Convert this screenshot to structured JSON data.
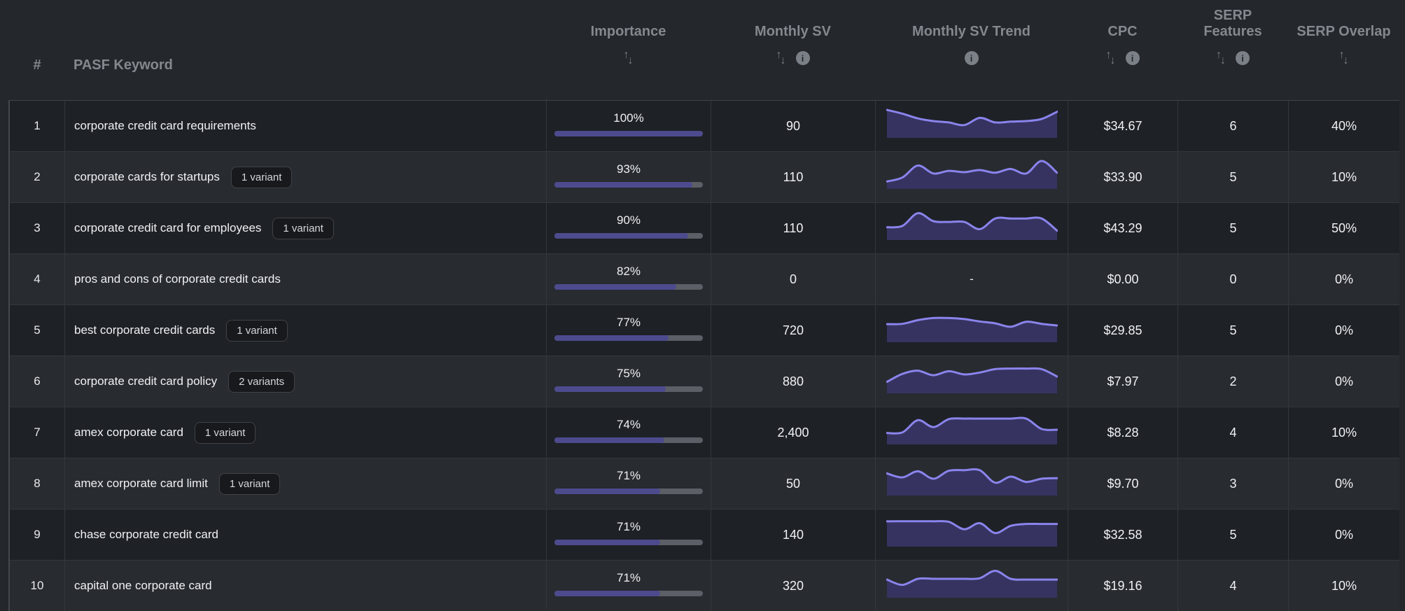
{
  "header": {
    "rank": "#",
    "keyword_col": "PASF Keyword",
    "importance": "Importance",
    "monthly_sv": "Monthly SV",
    "monthly_sv_trend": "Monthly SV Trend",
    "cpc": "CPC",
    "serp_features": "SERP Features",
    "serp_overlap": "SERP Overlap"
  },
  "icons": {
    "sort_up": "↑",
    "sort_down": "↓",
    "info": "i"
  },
  "trend_placeholder": "-",
  "colors": {
    "accent_bar": "#4d4b8e",
    "bar_track": "#5c5f66",
    "spark_line": "#8a84ec",
    "spark_fill": "#363360",
    "row_odd": "#1e2126",
    "row_even": "#282b30"
  },
  "rows": [
    {
      "num": "1",
      "keyword": "corporate credit card requirements",
      "badge": "",
      "importance": "100%",
      "importance_value": 100,
      "monthly_sv": "90",
      "cpc": "$34.67",
      "serp_features": "6",
      "serp_overlap": "40%",
      "trend": [
        0.08,
        0.22,
        0.4,
        0.5,
        0.55,
        0.65,
        0.38,
        0.55,
        0.52,
        0.5,
        0.42,
        0.15
      ]
    },
    {
      "num": "2",
      "keyword": "corporate cards for startups",
      "badge": "1 variant",
      "importance": "93%",
      "importance_value": 93,
      "monthly_sv": "110",
      "cpc": "$33.90",
      "serp_features": "5",
      "serp_overlap": "10%",
      "trend": [
        0.85,
        0.7,
        0.25,
        0.55,
        0.45,
        0.5,
        0.42,
        0.52,
        0.38,
        0.55,
        0.08,
        0.52
      ]
    },
    {
      "num": "3",
      "keyword": "corporate credit card for employees",
      "badge": "1 variant",
      "importance": "90%",
      "importance_value": 90,
      "monthly_sv": "110",
      "cpc": "$43.29",
      "serp_features": "5",
      "serp_overlap": "50%",
      "trend": [
        0.65,
        0.6,
        0.12,
        0.42,
        0.45,
        0.45,
        0.72,
        0.32,
        0.32,
        0.32,
        0.32,
        0.78
      ]
    },
    {
      "num": "4",
      "keyword": "pros and cons of corporate credit cards",
      "badge": "",
      "importance": "82%",
      "importance_value": 82,
      "monthly_sv": "0",
      "cpc": "$0.00",
      "serp_features": "0",
      "serp_overlap": "0%",
      "trend": null
    },
    {
      "num": "5",
      "keyword": "best corporate credit cards",
      "badge": "1 variant",
      "importance": "77%",
      "importance_value": 77,
      "monthly_sv": "720",
      "cpc": "$29.85",
      "serp_features": "5",
      "serp_overlap": "0%",
      "trend": [
        0.45,
        0.44,
        0.3,
        0.22,
        0.22,
        0.26,
        0.35,
        0.42,
        0.55,
        0.36,
        0.44,
        0.5
      ]
    },
    {
      "num": "6",
      "keyword": "corporate credit card policy",
      "badge": "2 variants",
      "importance": "75%",
      "importance_value": 75,
      "monthly_sv": "880",
      "cpc": "$7.97",
      "serp_features": "2",
      "serp_overlap": "0%",
      "trend": [
        0.7,
        0.4,
        0.28,
        0.45,
        0.3,
        0.42,
        0.35,
        0.22,
        0.2,
        0.2,
        0.22,
        0.5
      ]
    },
    {
      "num": "7",
      "keyword": "amex corporate card",
      "badge": "1 variant",
      "importance": "74%",
      "importance_value": 74,
      "monthly_sv": "2,400",
      "cpc": "$8.28",
      "serp_features": "4",
      "serp_overlap": "10%",
      "trend": [
        0.7,
        0.68,
        0.22,
        0.48,
        0.18,
        0.16,
        0.16,
        0.16,
        0.16,
        0.16,
        0.55,
        0.58
      ]
    },
    {
      "num": "8",
      "keyword": "amex corporate card limit",
      "badge": "1 variant",
      "importance": "71%",
      "importance_value": 71,
      "monthly_sv": "50",
      "cpc": "$9.70",
      "serp_features": "3",
      "serp_overlap": "0%",
      "trend": [
        0.3,
        0.45,
        0.22,
        0.5,
        0.2,
        0.18,
        0.18,
        0.65,
        0.42,
        0.62,
        0.5,
        0.48
      ]
    },
    {
      "num": "9",
      "keyword": "chase corporate credit card",
      "badge": "",
      "importance": "71%",
      "importance_value": 71,
      "monthly_sv": "140",
      "cpc": "$32.58",
      "serp_features": "5",
      "serp_overlap": "0%",
      "trend": [
        0.18,
        0.18,
        0.18,
        0.18,
        0.2,
        0.48,
        0.25,
        0.62,
        0.35,
        0.28,
        0.28,
        0.28
      ]
    },
    {
      "num": "10",
      "keyword": "capital one corporate card",
      "badge": "",
      "importance": "71%",
      "importance_value": 71,
      "monthly_sv": "320",
      "cpc": "$19.16",
      "serp_features": "4",
      "serp_overlap": "10%",
      "trend": [
        0.45,
        0.65,
        0.42,
        0.42,
        0.42,
        0.42,
        0.4,
        0.12,
        0.42,
        0.45,
        0.45,
        0.45
      ]
    }
  ]
}
